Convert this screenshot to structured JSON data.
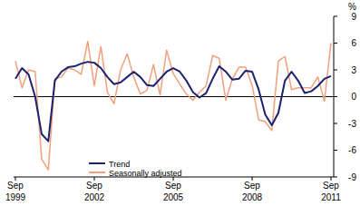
{
  "chart_data": {
    "type": "line",
    "y_label": "%",
    "categories": [
      "Sep 1999",
      null,
      null,
      null,
      null,
      null,
      null,
      null,
      null,
      null,
      null,
      null,
      "Sep 2002",
      null,
      null,
      null,
      null,
      null,
      null,
      null,
      null,
      null,
      null,
      null,
      "Sep 2005",
      null,
      null,
      null,
      null,
      null,
      null,
      null,
      null,
      null,
      null,
      null,
      "Sep 2008",
      null,
      null,
      null,
      null,
      null,
      null,
      null,
      null,
      null,
      null,
      null,
      "Sep 2011"
    ],
    "series": [
      {
        "name": "Trend",
        "color": "#1c2170",
        "values": [
          2.0,
          3.2,
          2.5,
          0.0,
          -4.2,
          -5.0,
          1.8,
          2.8,
          3.3,
          3.4,
          3.7,
          3.9,
          3.8,
          3.2,
          2.2,
          1.4,
          1.6,
          2.2,
          2.8,
          2.2,
          1.3,
          1.2,
          2.0,
          2.8,
          3.2,
          2.8,
          1.8,
          0.5,
          -0.1,
          0.4,
          2.0,
          3.4,
          2.8,
          1.9,
          2.0,
          2.9,
          2.8,
          0.8,
          -2.0,
          -3.2,
          -1.8,
          1.8,
          2.8,
          1.8,
          0.4,
          0.6,
          1.2,
          2.0,
          2.3
        ]
      },
      {
        "name": "Seasonally adjusted",
        "color": "#f0a07a",
        "values": [
          4.0,
          1.0,
          3.0,
          2.8,
          -7.0,
          -8.2,
          2.0,
          2.2,
          3.2,
          3.0,
          2.5,
          6.2,
          1.2,
          5.6,
          0.5,
          -0.8,
          3.0,
          4.8,
          2.2,
          0.3,
          0.7,
          3.6,
          0.2,
          5.2,
          2.6,
          1.4,
          0.3,
          -0.4,
          0.5,
          1.2,
          4.6,
          4.3,
          -0.4,
          2.0,
          3.3,
          3.3,
          1.3,
          -2.6,
          -2.8,
          -3.8,
          4.0,
          4.5,
          0.8,
          1.0,
          1.0,
          1.0,
          2.2,
          -0.5,
          6.0
        ]
      }
    ],
    "ylim": [
      -9,
      9
    ],
    "yticks": [
      -9,
      -6,
      -3,
      0,
      3,
      6,
      9
    ],
    "grid": false,
    "legend": "lower left"
  }
}
